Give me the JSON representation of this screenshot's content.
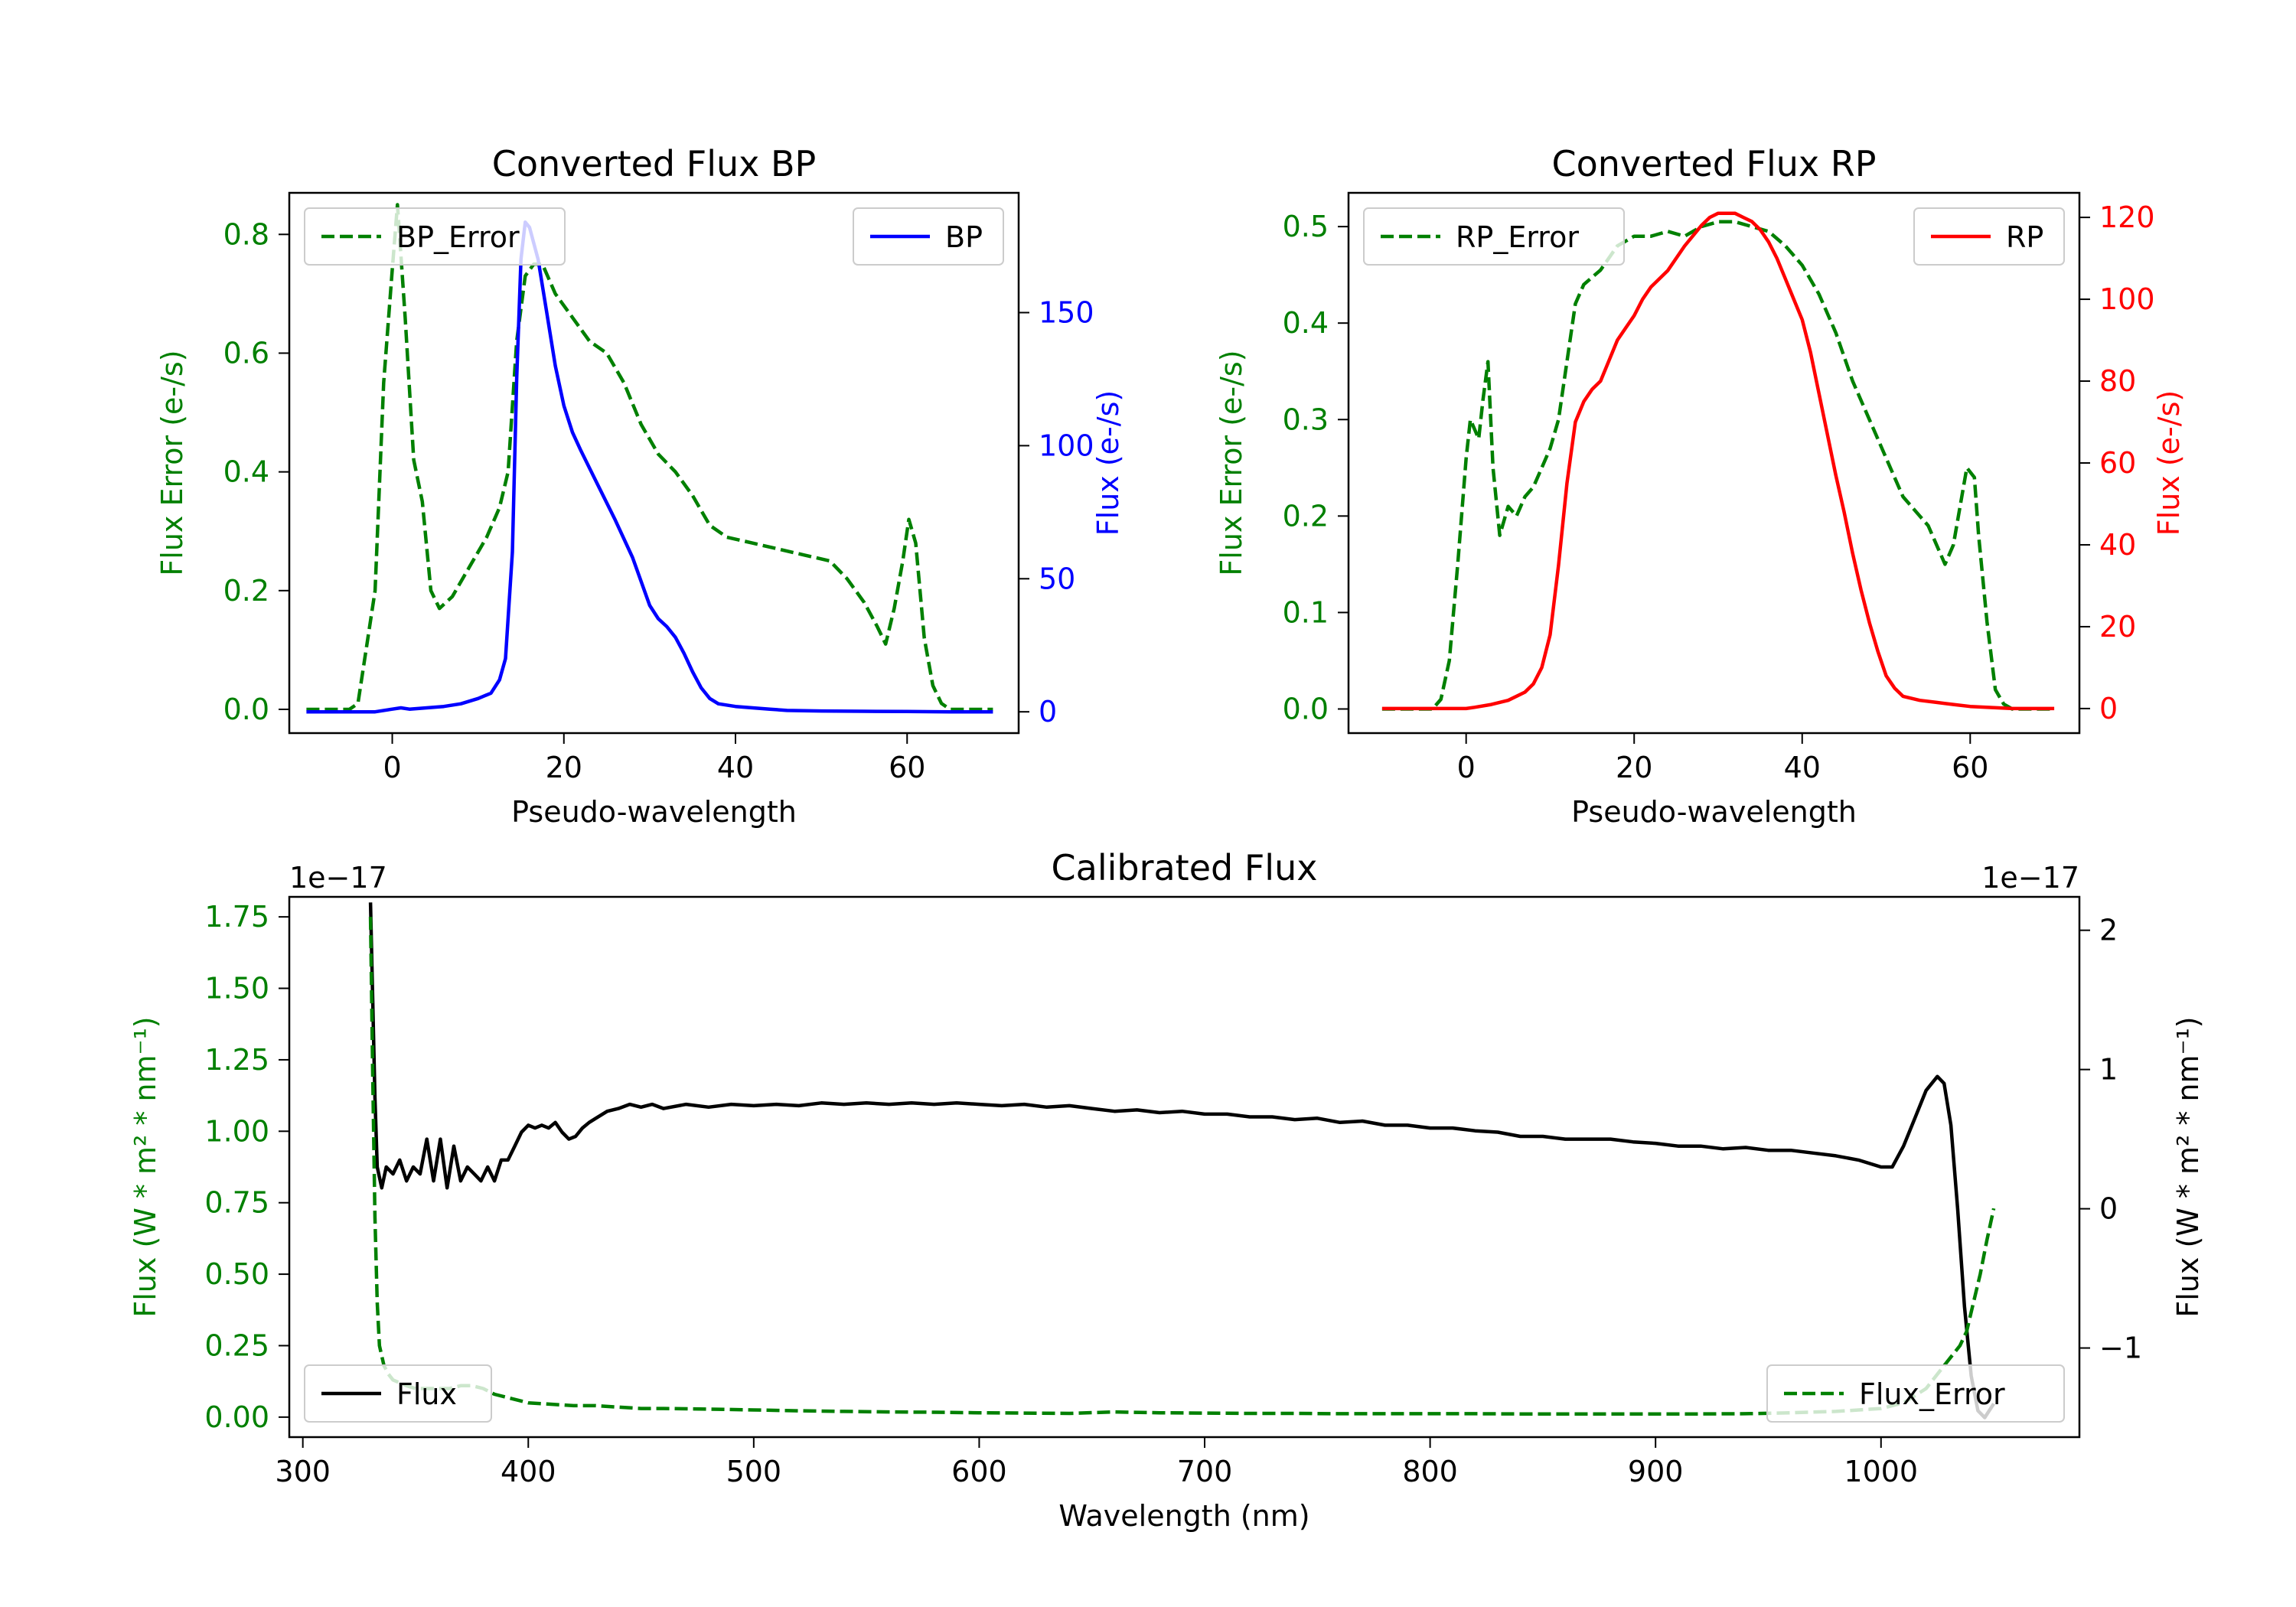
{
  "colors": {
    "green": "#008000",
    "blue": "#0000ff",
    "red": "#ff0000",
    "black": "#000000"
  },
  "chart_data": [
    {
      "id": "bp",
      "type": "line",
      "title": "Converted Flux BP",
      "xlabel": "Pseudo-wavelength",
      "ylabel_left": "Flux Error (e-/s)",
      "ylabel_right": "Flux (e-/s)",
      "xlim": [
        -12,
        73
      ],
      "ylim_left": [
        -0.04,
        0.87
      ],
      "ylim_right": [
        -8,
        195
      ],
      "xticks": [
        0,
        20,
        40,
        60
      ],
      "yticks_left": [
        0.0,
        0.2,
        0.4,
        0.6,
        0.8
      ],
      "yticks_left_labels": [
        "0.0",
        "0.2",
        "0.4",
        "0.6",
        "0.8"
      ],
      "yticks_right": [
        0,
        50,
        100,
        150
      ],
      "yticks_right_labels": [
        "0",
        "50",
        "100",
        "150"
      ],
      "left_color": "green",
      "right_color": "blue",
      "series": [
        {
          "name": "BP_Error",
          "axis": "left",
          "style": "dashed",
          "color": "green",
          "legend": "top-left",
          "x": [
            -10,
            -5,
            -4,
            -2,
            -1,
            0,
            0.6,
            1.5,
            2.5,
            3.5,
            4.5,
            5.5,
            7,
            9,
            11,
            12.5,
            13.5,
            14.5,
            15.5,
            16.5,
            17.5,
            19,
            21,
            23,
            25,
            27,
            29,
            31,
            33,
            35,
            37,
            39,
            42,
            45,
            48,
            51,
            53,
            55,
            56.5,
            57.5,
            58.5,
            59.5,
            60.2,
            61,
            62,
            63,
            64,
            65,
            70
          ],
          "values": [
            0,
            0,
            0.01,
            0.2,
            0.55,
            0.74,
            0.85,
            0.66,
            0.42,
            0.35,
            0.2,
            0.17,
            0.19,
            0.24,
            0.29,
            0.34,
            0.4,
            0.62,
            0.73,
            0.75,
            0.75,
            0.7,
            0.66,
            0.62,
            0.6,
            0.55,
            0.48,
            0.43,
            0.4,
            0.36,
            0.31,
            0.29,
            0.28,
            0.27,
            0.26,
            0.25,
            0.22,
            0.18,
            0.14,
            0.11,
            0.17,
            0.25,
            0.32,
            0.28,
            0.12,
            0.04,
            0.01,
            0,
            0
          ]
        },
        {
          "name": "BP",
          "axis": "right",
          "style": "solid",
          "color": "blue",
          "legend": "top-right",
          "x": [
            -10,
            -2,
            0,
            1,
            2,
            4,
            6,
            8,
            10,
            11.5,
            12.5,
            13.2,
            14,
            14.5,
            15,
            15.5,
            16,
            17,
            18,
            19,
            20,
            21,
            22,
            24,
            26,
            28,
            30,
            31,
            32,
            33,
            34,
            35,
            36,
            37,
            38,
            40,
            42,
            44,
            46,
            50,
            55,
            60,
            65,
            70
          ],
          "values": [
            0,
            0,
            1,
            1.5,
            1,
            1.5,
            2,
            3,
            5,
            7,
            12,
            20,
            60,
            125,
            170,
            184,
            182,
            170,
            150,
            130,
            115,
            105,
            98,
            85,
            72,
            58,
            40,
            35,
            32,
            28,
            22,
            15,
            9,
            5,
            3,
            2,
            1.5,
            1,
            0.5,
            0.3,
            0.2,
            0.1,
            0,
            0
          ]
        }
      ]
    },
    {
      "id": "rp",
      "type": "line",
      "title": "Converted Flux RP",
      "xlabel": "Pseudo-wavelength",
      "ylabel_left": "Flux Error (e-/s)",
      "ylabel_right": "Flux (e-/s)",
      "xlim": [
        -14,
        73
      ],
      "ylim_left": [
        -0.025,
        0.535
      ],
      "ylim_right": [
        -6,
        126
      ],
      "xticks": [
        0,
        20,
        40,
        60
      ],
      "yticks_left": [
        0.0,
        0.1,
        0.2,
        0.3,
        0.4,
        0.5
      ],
      "yticks_left_labels": [
        "0.0",
        "0.1",
        "0.2",
        "0.3",
        "0.4",
        "0.5"
      ],
      "yticks_right": [
        0,
        20,
        40,
        60,
        80,
        100,
        120
      ],
      "yticks_right_labels": [
        "0",
        "20",
        "40",
        "60",
        "80",
        "100",
        "120"
      ],
      "left_color": "green",
      "right_color": "red",
      "series": [
        {
          "name": "RP_Error",
          "axis": "left",
          "style": "dashed",
          "color": "green",
          "legend": "top-left",
          "x": [
            -10,
            -4,
            -3,
            -2,
            -1,
            0,
            0.5,
            1,
            1.5,
            2,
            2.6,
            3.2,
            4,
            5,
            6,
            7,
            8,
            9,
            10,
            11,
            12,
            13,
            14,
            16,
            18,
            20,
            22,
            24,
            26,
            28,
            30,
            32,
            34,
            36,
            38,
            40,
            42,
            44,
            46,
            48,
            50,
            52,
            54,
            55,
            56,
            57,
            58,
            59,
            59.6,
            60.5,
            61,
            62,
            63,
            64,
            65,
            70
          ],
          "values": [
            0,
            0,
            0.01,
            0.05,
            0.15,
            0.26,
            0.3,
            0.29,
            0.28,
            0.32,
            0.36,
            0.25,
            0.18,
            0.21,
            0.2,
            0.22,
            0.23,
            0.25,
            0.27,
            0.3,
            0.36,
            0.42,
            0.44,
            0.455,
            0.48,
            0.49,
            0.49,
            0.495,
            0.49,
            0.5,
            0.505,
            0.505,
            0.5,
            0.495,
            0.48,
            0.46,
            0.43,
            0.39,
            0.34,
            0.3,
            0.26,
            0.22,
            0.2,
            0.19,
            0.17,
            0.15,
            0.17,
            0.22,
            0.25,
            0.24,
            0.18,
            0.09,
            0.02,
            0.005,
            0,
            0
          ]
        },
        {
          "name": "RP",
          "axis": "right",
          "style": "solid",
          "color": "red",
          "legend": "top-right",
          "x": [
            -10,
            0,
            1,
            3,
            5,
            7,
            8,
            9,
            10,
            11,
            12,
            13,
            14,
            15,
            16,
            17,
            18,
            19,
            20,
            21,
            22,
            24,
            26,
            28,
            29,
            30,
            31,
            32,
            33,
            34,
            35,
            36,
            37,
            38,
            39,
            40,
            41,
            42,
            43,
            44,
            45,
            46,
            47,
            48,
            49,
            50,
            51,
            52,
            54,
            56,
            58,
            60,
            65,
            70
          ],
          "values": [
            0,
            0,
            0.3,
            1,
            2,
            4,
            6,
            10,
            18,
            35,
            55,
            70,
            75,
            78,
            80,
            85,
            90,
            93,
            96,
            100,
            103,
            107,
            113,
            118,
            120,
            121,
            121,
            121,
            120,
            119,
            117,
            114,
            110,
            105,
            100,
            95,
            87,
            77,
            67,
            57,
            48,
            38,
            29,
            21,
            14,
            8,
            5,
            3,
            2,
            1.5,
            1,
            0.5,
            0,
            0
          ]
        }
      ]
    },
    {
      "id": "calibrated",
      "type": "line",
      "title": "Calibrated Flux",
      "xlabel": "Wavelength (nm)",
      "ylabel_left": "Flux (W * m² * nm⁻¹)",
      "ylabel_right": "Flux (W * m² * nm⁻¹)",
      "offset_left": "1e−17",
      "offset_right": "1e−17",
      "xlim": [
        294,
        1088
      ],
      "ylim_left": [
        -0.07,
        1.82
      ],
      "ylim_right": [
        -1.64,
        2.24
      ],
      "xticks": [
        300,
        400,
        500,
        600,
        700,
        800,
        900,
        1000
      ],
      "yticks_left": [
        0.0,
        0.25,
        0.5,
        0.75,
        1.0,
        1.25,
        1.5,
        1.75
      ],
      "yticks_left_labels": [
        "0.00",
        "0.25",
        "0.50",
        "0.75",
        "1.00",
        "1.25",
        "1.50",
        "1.75"
      ],
      "yticks_right": [
        -1,
        0,
        1,
        2
      ],
      "yticks_right_labels": [
        "−1",
        "0",
        "1",
        "2"
      ],
      "left_color": "green",
      "right_color": "black",
      "series": [
        {
          "name": "Flux",
          "axis": "right",
          "style": "solid",
          "color": "black",
          "legend": "lower-left",
          "x": [
            330,
            331,
            332,
            333,
            335,
            337,
            340,
            343,
            346,
            349,
            352,
            355,
            358,
            361,
            364,
            367,
            370,
            373,
            376,
            379,
            382,
            385,
            388,
            391,
            394,
            397,
            400,
            403,
            406,
            409,
            412,
            415,
            418,
            421,
            424,
            427,
            430,
            435,
            440,
            445,
            450,
            455,
            460,
            470,
            480,
            490,
            500,
            510,
            520,
            530,
            540,
            550,
            560,
            570,
            580,
            590,
            600,
            610,
            620,
            630,
            640,
            650,
            660,
            670,
            680,
            690,
            700,
            710,
            720,
            730,
            740,
            750,
            760,
            770,
            780,
            790,
            800,
            810,
            820,
            830,
            840,
            850,
            860,
            870,
            880,
            890,
            900,
            910,
            920,
            930,
            940,
            950,
            960,
            970,
            980,
            990,
            1000,
            1005,
            1010,
            1015,
            1020,
            1025,
            1028,
            1031,
            1034,
            1037,
            1040,
            1043,
            1046,
            1048,
            1050
          ],
          "values": [
            2.2,
            1.5,
            0.8,
            0.3,
            0.15,
            0.3,
            0.25,
            0.35,
            0.2,
            0.3,
            0.25,
            0.5,
            0.2,
            0.5,
            0.15,
            0.45,
            0.2,
            0.3,
            0.25,
            0.2,
            0.3,
            0.2,
            0.35,
            0.35,
            0.45,
            0.55,
            0.6,
            0.58,
            0.6,
            0.58,
            0.62,
            0.55,
            0.5,
            0.52,
            0.58,
            0.62,
            0.65,
            0.7,
            0.72,
            0.75,
            0.73,
            0.75,
            0.72,
            0.75,
            0.73,
            0.75,
            0.74,
            0.75,
            0.74,
            0.76,
            0.75,
            0.76,
            0.75,
            0.76,
            0.75,
            0.76,
            0.75,
            0.74,
            0.75,
            0.73,
            0.74,
            0.72,
            0.7,
            0.71,
            0.69,
            0.7,
            0.68,
            0.68,
            0.66,
            0.66,
            0.64,
            0.65,
            0.62,
            0.63,
            0.6,
            0.6,
            0.58,
            0.58,
            0.56,
            0.55,
            0.52,
            0.52,
            0.5,
            0.5,
            0.5,
            0.48,
            0.47,
            0.45,
            0.45,
            0.43,
            0.44,
            0.42,
            0.42,
            0.4,
            0.38,
            0.35,
            0.3,
            0.3,
            0.45,
            0.65,
            0.85,
            0.95,
            0.9,
            0.6,
            0.0,
            -0.7,
            -1.2,
            -1.45,
            -1.5,
            -1.45,
            -1.4
          ]
        },
        {
          "name": "Flux_Error",
          "axis": "left",
          "style": "dashed",
          "color": "green",
          "legend": "lower-right",
          "x": [
            330,
            331,
            332,
            333,
            334,
            336,
            338,
            340,
            343,
            346,
            350,
            355,
            360,
            365,
            370,
            375,
            380,
            385,
            390,
            395,
            400,
            410,
            420,
            430,
            440,
            450,
            460,
            480,
            500,
            520,
            540,
            560,
            580,
            600,
            620,
            640,
            660,
            680,
            700,
            720,
            740,
            760,
            780,
            800,
            820,
            840,
            860,
            880,
            900,
            920,
            940,
            960,
            980,
            1000,
            1010,
            1020,
            1030,
            1035,
            1038,
            1041,
            1044,
            1047,
            1050
          ],
          "values": [
            1.75,
            1.2,
            0.7,
            0.4,
            0.25,
            0.18,
            0.15,
            0.13,
            0.12,
            0.11,
            0.1,
            0.1,
            0.1,
            0.1,
            0.11,
            0.11,
            0.1,
            0.08,
            0.07,
            0.06,
            0.05,
            0.045,
            0.04,
            0.04,
            0.035,
            0.03,
            0.03,
            0.028,
            0.025,
            0.022,
            0.02,
            0.018,
            0.017,
            0.015,
            0.014,
            0.013,
            0.018,
            0.015,
            0.014,
            0.013,
            0.013,
            0.012,
            0.012,
            0.012,
            0.012,
            0.011,
            0.011,
            0.011,
            0.011,
            0.011,
            0.012,
            0.015,
            0.02,
            0.03,
            0.05,
            0.1,
            0.2,
            0.25,
            0.3,
            0.4,
            0.5,
            0.62,
            0.73
          ]
        }
      ]
    }
  ]
}
